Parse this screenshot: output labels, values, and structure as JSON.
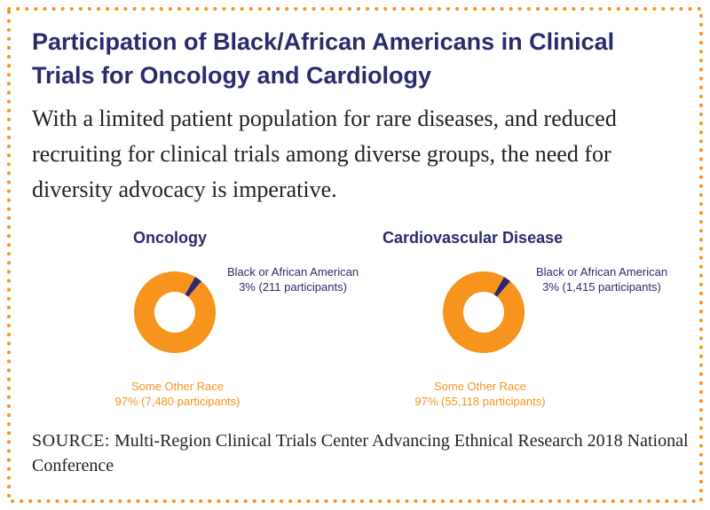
{
  "colors": {
    "border": "#f7941d",
    "title": "#2a2a6e",
    "slice_black": "#2a2a6e",
    "slice_other": "#f7941d"
  },
  "title": "Participation of Black/African Americans in Clinical Trials for Oncology and Cardiology",
  "subtitle": "With a limited patient population for rare diseases, and reduced recruiting for clinical trials among diverse groups, the need for diversity advocacy is imperative.",
  "source": {
    "label": "SOURCE:",
    "text": " Multi-Region Clinical Trials Center Advancing Ethnical Research 2018 National Conference"
  },
  "chart_data": [
    {
      "type": "pie",
      "title": "Oncology",
      "slices": [
        {
          "name": "Black or African American",
          "value": 3,
          "label": "3% (211 participants)"
        },
        {
          "name": "Some Other Race",
          "value": 97,
          "label": "97% (7,480 participants)"
        }
      ]
    },
    {
      "type": "pie",
      "title": "Cardiovascular Disease",
      "slices": [
        {
          "name": "Black or African American",
          "value": 3,
          "label": "3% (1,415 participants)"
        },
        {
          "name": "Some Other Race",
          "value": 97,
          "label": "97% (55,118 participants)"
        }
      ]
    }
  ]
}
